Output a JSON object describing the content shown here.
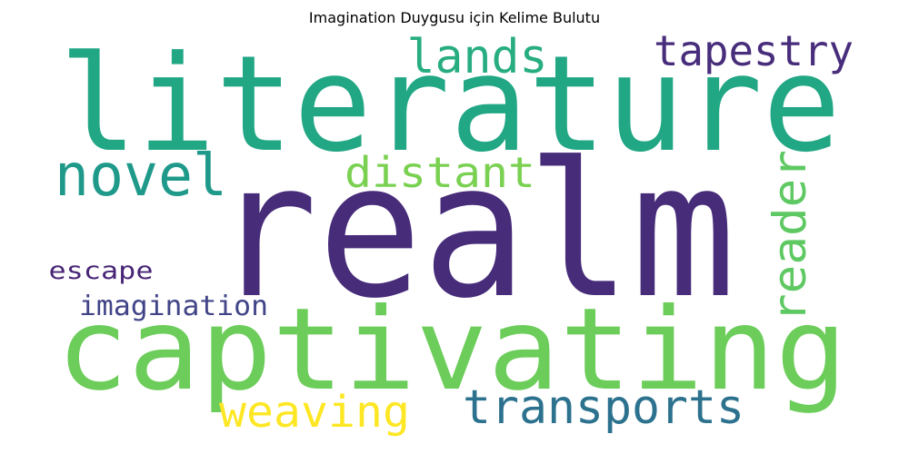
{
  "title": "Imagination Duygusu için Kelime Bulutu",
  "words": [
    {
      "key": "literature",
      "text": "literature",
      "color": "#22a785"
    },
    {
      "key": "realm",
      "text": "realm",
      "color": "#472c7a"
    },
    {
      "key": "captivating",
      "text": "captivating",
      "color": "#6ccd5a"
    },
    {
      "key": "novel",
      "text": "novel",
      "color": "#1f9a8a"
    },
    {
      "key": "distant",
      "text": "distant",
      "color": "#7ad151"
    },
    {
      "key": "lands",
      "text": "lands",
      "color": "#27ad81"
    },
    {
      "key": "tapestry",
      "text": "tapestry",
      "color": "#472d7b"
    },
    {
      "key": "reader",
      "text": "reader",
      "color": "#5ec962"
    },
    {
      "key": "escape",
      "text": "escape",
      "color": "#482576"
    },
    {
      "key": "imagination",
      "text": "imagination",
      "color": "#414487"
    },
    {
      "key": "weaving",
      "text": "weaving",
      "color": "#fde725"
    },
    {
      "key": "transports",
      "text": "transports",
      "color": "#2c728e"
    }
  ]
}
